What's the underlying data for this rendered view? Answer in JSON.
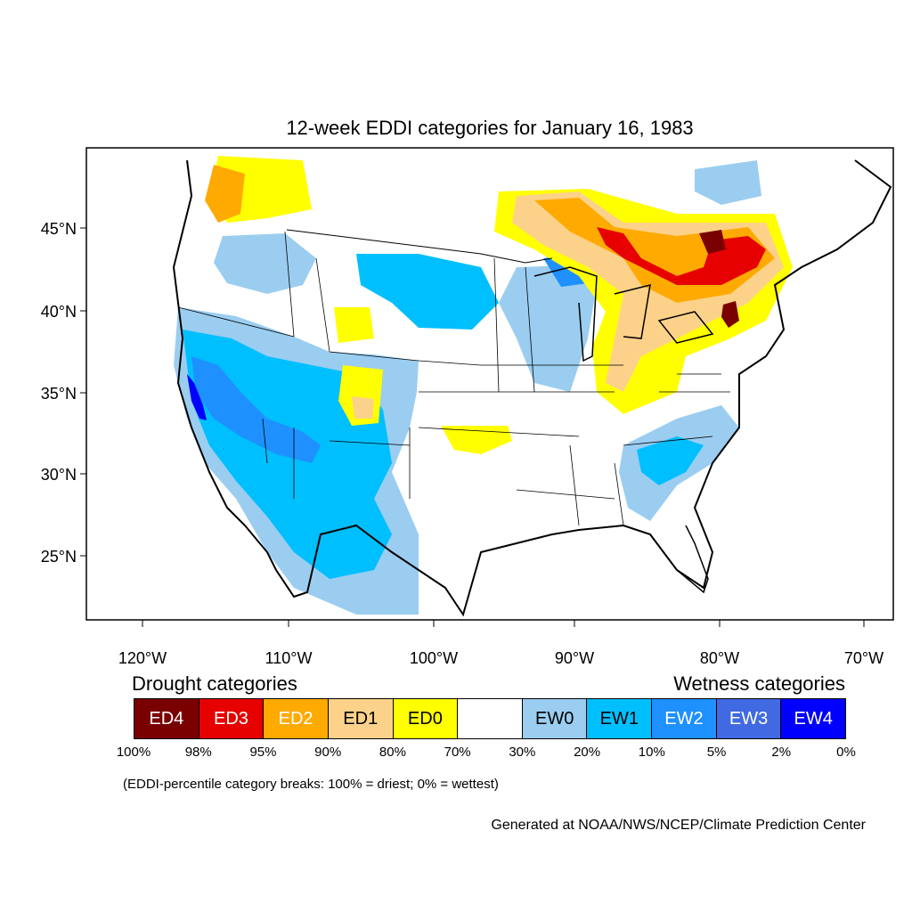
{
  "title": "12-week EDDI categories for January 16, 1983",
  "axes": {
    "lat_labels": [
      "45°N",
      "40°N",
      "35°N",
      "30°N",
      "25°N"
    ],
    "lon_labels": [
      "120°W",
      "110°W",
      "100°W",
      "90°W",
      "80°W",
      "70°W"
    ]
  },
  "legend": {
    "drought_heading": "Drought categories",
    "wetness_heading": "Wetness categories",
    "categories": [
      {
        "label": "ED4",
        "color": "#7a0000",
        "text_color": "#ffffff"
      },
      {
        "label": "ED3",
        "color": "#e60000",
        "text_color": "#ffffff"
      },
      {
        "label": "ED2",
        "color": "#ffaa00",
        "text_color": "#ffffff"
      },
      {
        "label": "ED1",
        "color": "#fcd28a",
        "text_color": "#000000"
      },
      {
        "label": "ED0",
        "color": "#ffff00",
        "text_color": "#000000"
      },
      {
        "label": "",
        "color": "#ffffff",
        "text_color": "#000000"
      },
      {
        "label": "EW0",
        "color": "#9bcdf0",
        "text_color": "#000000"
      },
      {
        "label": "EW1",
        "color": "#00bfff",
        "text_color": "#000000"
      },
      {
        "label": "EW2",
        "color": "#1e90ff",
        "text_color": "#ffffff"
      },
      {
        "label": "EW3",
        "color": "#4169e1",
        "text_color": "#ffffff"
      },
      {
        "label": "EW4",
        "color": "#0000ff",
        "text_color": "#ffffff"
      }
    ],
    "tick_labels": [
      "100%",
      "98%",
      "95%",
      "90%",
      "80%",
      "70%",
      "30%",
      "20%",
      "10%",
      "5%",
      "2%",
      "0%"
    ]
  },
  "note": "(EDDI-percentile category breaks: 100% = driest; 0% = wettest)",
  "credit": "Generated at NOAA/NWS/NCEP/Climate Prediction Center"
}
